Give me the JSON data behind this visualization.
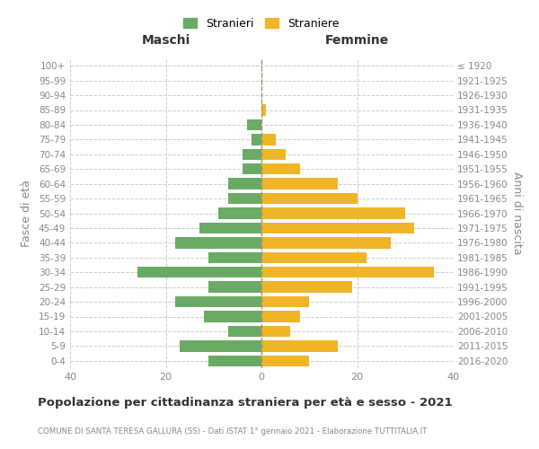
{
  "age_groups": [
    "0-4",
    "5-9",
    "10-14",
    "15-19",
    "20-24",
    "25-29",
    "30-34",
    "35-39",
    "40-44",
    "45-49",
    "50-54",
    "55-59",
    "60-64",
    "65-69",
    "70-74",
    "75-79",
    "80-84",
    "85-89",
    "90-94",
    "95-99",
    "100+"
  ],
  "birth_years": [
    "2016-2020",
    "2011-2015",
    "2006-2010",
    "2001-2005",
    "1996-2000",
    "1991-1995",
    "1986-1990",
    "1981-1985",
    "1976-1980",
    "1971-1975",
    "1966-1970",
    "1961-1965",
    "1956-1960",
    "1951-1955",
    "1946-1950",
    "1941-1945",
    "1936-1940",
    "1931-1935",
    "1926-1930",
    "1921-1925",
    "≤ 1920"
  ],
  "maschi": [
    11,
    17,
    7,
    12,
    18,
    11,
    26,
    11,
    18,
    13,
    9,
    7,
    7,
    4,
    4,
    2,
    3,
    0,
    0,
    0,
    0
  ],
  "femmine": [
    10,
    16,
    6,
    8,
    10,
    19,
    36,
    22,
    27,
    32,
    30,
    20,
    16,
    8,
    5,
    3,
    0,
    1,
    0,
    0,
    0
  ],
  "male_color": "#6aaa64",
  "female_color": "#f0b429",
  "bar_height": 0.75,
  "xlim": 40,
  "title": "Popolazione per cittadinanza straniera per età e sesso - 2021",
  "subtitle": "COMUNE DI SANTA TERESA GALLURA (SS) - Dati ISTAT 1° gennaio 2021 - Elaborazione TUTTITALIA.IT",
  "xlabel_left": "Maschi",
  "xlabel_right": "Femmine",
  "ylabel_left": "Fasce di età",
  "ylabel_right": "Anni di nascita",
  "legend_male": "Stranieri",
  "legend_female": "Straniere",
  "background_color": "#ffffff",
  "grid_color": "#cccccc",
  "text_color": "#888888",
  "title_color": "#333333"
}
